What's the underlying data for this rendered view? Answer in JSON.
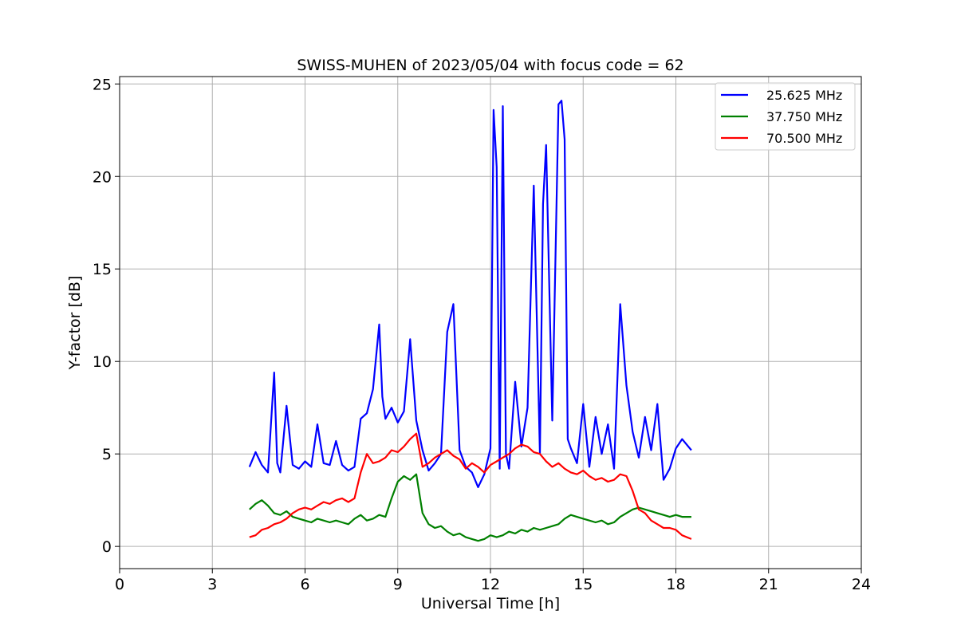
{
  "chart_data": {
    "type": "line",
    "title": "SWISS-MUHEN of 2023/05/04 with focus code = 62",
    "xlabel": "Universal Time [h]",
    "ylabel": "Y-factor [dB]",
    "xlim": [
      0,
      24
    ],
    "ylim": [
      -1.2,
      25.4
    ],
    "xticks": [
      0,
      3,
      6,
      9,
      12,
      15,
      18,
      21,
      24
    ],
    "yticks": [
      0,
      5,
      10,
      15,
      20,
      25
    ],
    "grid": true,
    "legend_position": "top-right",
    "series": [
      {
        "name": "25.625 MHz",
        "color": "#0000ff",
        "x": [
          4.2,
          4.4,
          4.6,
          4.8,
          5.0,
          5.1,
          5.2,
          5.4,
          5.6,
          5.8,
          6.0,
          6.2,
          6.4,
          6.6,
          6.8,
          7.0,
          7.2,
          7.4,
          7.6,
          7.8,
          8.0,
          8.2,
          8.4,
          8.5,
          8.6,
          8.8,
          9.0,
          9.2,
          9.4,
          9.6,
          9.8,
          10.0,
          10.2,
          10.4,
          10.6,
          10.8,
          11.0,
          11.2,
          11.4,
          11.6,
          11.8,
          12.0,
          12.1,
          12.2,
          12.3,
          12.4,
          12.5,
          12.6,
          12.8,
          13.0,
          13.2,
          13.4,
          13.6,
          13.7,
          13.8,
          14.0,
          14.2,
          14.3,
          14.4,
          14.5,
          14.6,
          14.8,
          15.0,
          15.2,
          15.4,
          15.6,
          15.8,
          16.0,
          16.2,
          16.4,
          16.6,
          16.8,
          17.0,
          17.2,
          17.4,
          17.6,
          17.8,
          18.0,
          18.2,
          18.5
        ],
        "y": [
          4.3,
          5.1,
          4.4,
          4.0,
          9.4,
          4.5,
          4.0,
          7.6,
          4.4,
          4.2,
          4.6,
          4.3,
          6.6,
          4.5,
          4.4,
          5.7,
          4.4,
          4.1,
          4.3,
          6.9,
          7.2,
          8.5,
          12.0,
          8.1,
          6.9,
          7.5,
          6.7,
          7.3,
          11.2,
          6.8,
          5.2,
          4.1,
          4.5,
          5.0,
          11.6,
          13.1,
          5.2,
          4.3,
          4.0,
          3.2,
          3.9,
          5.3,
          23.6,
          20.5,
          4.2,
          23.8,
          5.0,
          4.2,
          8.9,
          5.4,
          7.5,
          19.5,
          5.0,
          18.5,
          21.7,
          6.8,
          23.9,
          24.1,
          22.0,
          5.8,
          5.3,
          4.5,
          7.7,
          4.3,
          7.0,
          5.0,
          6.6,
          4.2,
          13.1,
          8.7,
          6.2,
          4.8,
          7.0,
          5.2,
          7.7,
          3.6,
          4.2,
          5.3,
          5.8,
          5.2
        ]
      },
      {
        "name": "37.750 MHz",
        "color": "#008000",
        "x": [
          4.2,
          4.4,
          4.6,
          4.8,
          5.0,
          5.2,
          5.4,
          5.6,
          5.8,
          6.0,
          6.2,
          6.4,
          6.6,
          6.8,
          7.0,
          7.2,
          7.4,
          7.6,
          7.8,
          8.0,
          8.2,
          8.4,
          8.6,
          8.8,
          9.0,
          9.2,
          9.4,
          9.6,
          9.8,
          10.0,
          10.2,
          10.4,
          10.6,
          10.8,
          11.0,
          11.2,
          11.4,
          11.6,
          11.8,
          12.0,
          12.2,
          12.4,
          12.6,
          12.8,
          13.0,
          13.2,
          13.4,
          13.6,
          13.8,
          14.0,
          14.2,
          14.4,
          14.6,
          14.8,
          15.0,
          15.2,
          15.4,
          15.6,
          15.8,
          16.0,
          16.2,
          16.4,
          16.6,
          16.8,
          17.0,
          17.2,
          17.4,
          17.6,
          17.8,
          18.0,
          18.2,
          18.5
        ],
        "y": [
          2.0,
          2.3,
          2.5,
          2.2,
          1.8,
          1.7,
          1.9,
          1.6,
          1.5,
          1.4,
          1.3,
          1.5,
          1.4,
          1.3,
          1.4,
          1.3,
          1.2,
          1.5,
          1.7,
          1.4,
          1.5,
          1.7,
          1.6,
          2.6,
          3.5,
          3.8,
          3.6,
          3.9,
          1.8,
          1.2,
          1.0,
          1.1,
          0.8,
          0.6,
          0.7,
          0.5,
          0.4,
          0.3,
          0.4,
          0.6,
          0.5,
          0.6,
          0.8,
          0.7,
          0.9,
          0.8,
          1.0,
          0.9,
          1.0,
          1.1,
          1.2,
          1.5,
          1.7,
          1.6,
          1.5,
          1.4,
          1.3,
          1.4,
          1.2,
          1.3,
          1.6,
          1.8,
          2.0,
          2.1,
          2.0,
          1.9,
          1.8,
          1.7,
          1.6,
          1.7,
          1.6,
          1.6
        ]
      },
      {
        "name": "70.500 MHz",
        "color": "#ff0000",
        "x": [
          4.2,
          4.4,
          4.6,
          4.8,
          5.0,
          5.2,
          5.4,
          5.6,
          5.8,
          6.0,
          6.2,
          6.4,
          6.6,
          6.8,
          7.0,
          7.2,
          7.4,
          7.6,
          7.8,
          8.0,
          8.2,
          8.4,
          8.6,
          8.8,
          9.0,
          9.2,
          9.4,
          9.6,
          9.8,
          10.0,
          10.2,
          10.4,
          10.6,
          10.8,
          11.0,
          11.2,
          11.4,
          11.6,
          11.8,
          12.0,
          12.2,
          12.4,
          12.6,
          12.8,
          13.0,
          13.2,
          13.4,
          13.6,
          13.8,
          14.0,
          14.2,
          14.4,
          14.6,
          14.8,
          15.0,
          15.2,
          15.4,
          15.6,
          15.8,
          16.0,
          16.2,
          16.4,
          16.6,
          16.8,
          17.0,
          17.2,
          17.4,
          17.6,
          17.8,
          18.0,
          18.2,
          18.5
        ],
        "y": [
          0.5,
          0.6,
          0.9,
          1.0,
          1.2,
          1.3,
          1.5,
          1.8,
          2.0,
          2.1,
          2.0,
          2.2,
          2.4,
          2.3,
          2.5,
          2.6,
          2.4,
          2.6,
          4.0,
          5.0,
          4.5,
          4.6,
          4.8,
          5.2,
          5.1,
          5.4,
          5.8,
          6.1,
          4.3,
          4.5,
          4.8,
          5.0,
          5.2,
          4.9,
          4.7,
          4.2,
          4.5,
          4.3,
          4.0,
          4.4,
          4.6,
          4.8,
          5.0,
          5.3,
          5.5,
          5.4,
          5.1,
          5.0,
          4.6,
          4.3,
          4.5,
          4.2,
          4.0,
          3.9,
          4.1,
          3.8,
          3.6,
          3.7,
          3.5,
          3.6,
          3.9,
          3.8,
          3.0,
          2.0,
          1.8,
          1.4,
          1.2,
          1.0,
          1.0,
          0.9,
          0.6,
          0.4
        ]
      }
    ]
  }
}
